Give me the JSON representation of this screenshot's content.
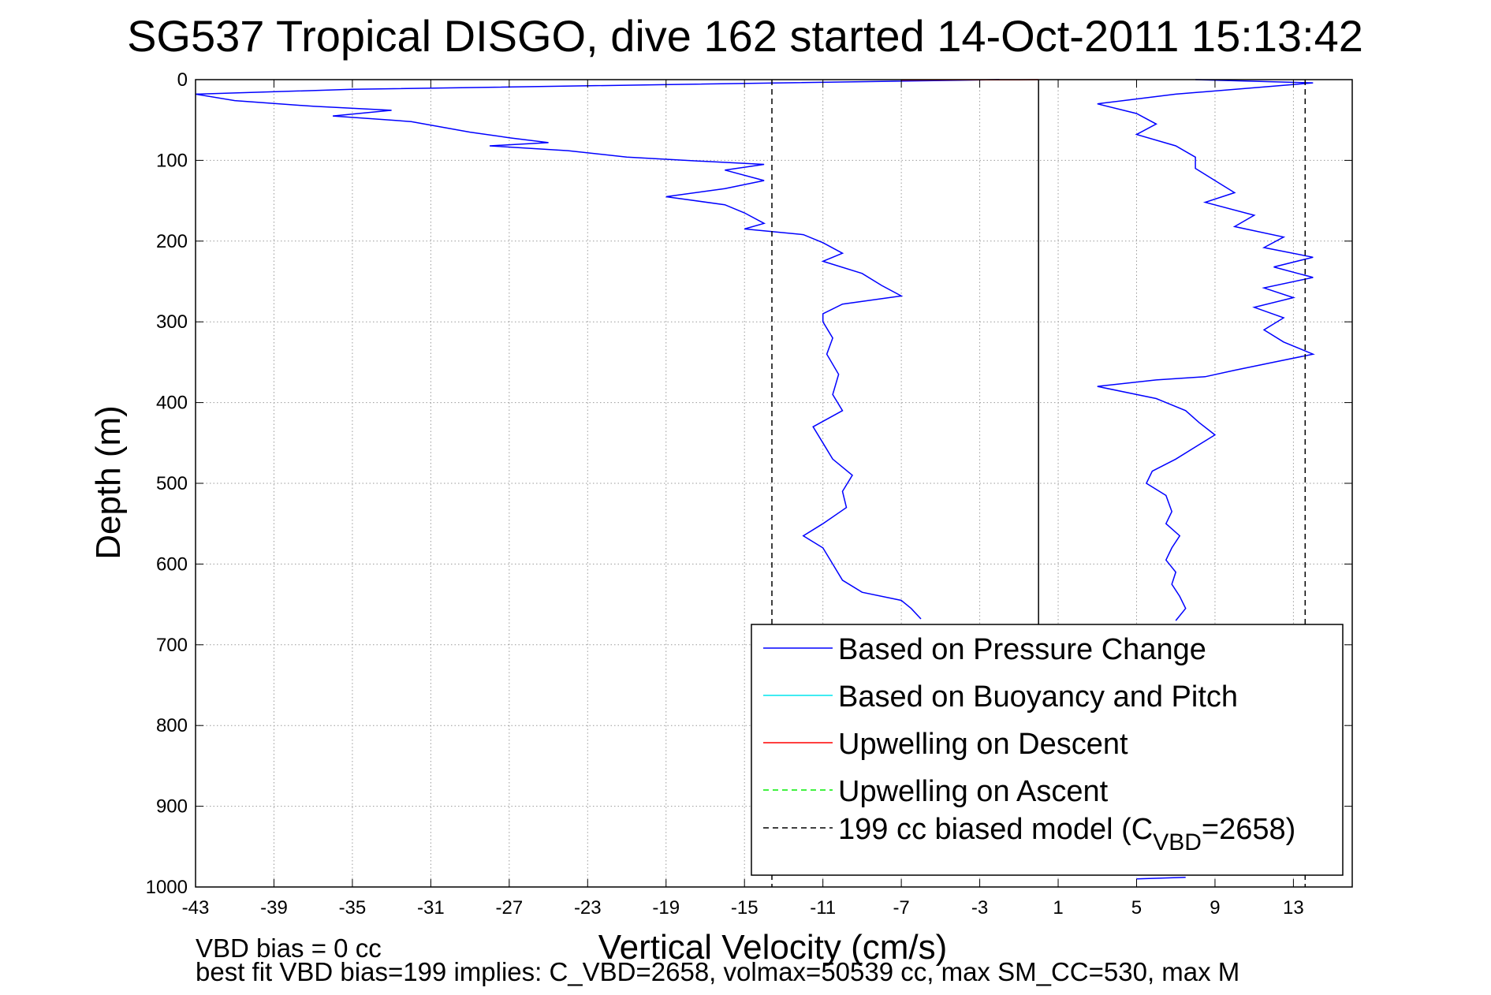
{
  "chart_data": {
    "type": "line",
    "title": "SG537 Tropical DISGO, dive 162 started 14-Oct-2011 15:13:42",
    "xlabel": "Vertical Velocity (cm/s)",
    "ylabel": "Depth (m)",
    "xlim": [
      -43,
      16
    ],
    "ylim": [
      0,
      1000
    ],
    "y_reversed": true,
    "grid": true,
    "xticks": [
      -43,
      -39,
      -35,
      -31,
      -27,
      -23,
      -19,
      -15,
      -11,
      -7,
      -3,
      1,
      5,
      9,
      13
    ],
    "yticks": [
      0,
      100,
      200,
      300,
      400,
      500,
      600,
      700,
      800,
      900,
      1000
    ],
    "legend_position": "bottom-right",
    "series": [
      {
        "name": "Based on Pressure Change",
        "color": "#0000ff",
        "style": "solid",
        "segment": "descent",
        "points": [
          [
            -2,
            0
          ],
          [
            -35,
            12
          ],
          [
            -43,
            18
          ],
          [
            -41,
            26
          ],
          [
            -37,
            33
          ],
          [
            -33,
            38
          ],
          [
            -36,
            45
          ],
          [
            -32,
            52
          ],
          [
            -29,
            65
          ],
          [
            -27,
            72
          ],
          [
            -25,
            78
          ],
          [
            -28,
            82
          ],
          [
            -24,
            88
          ],
          [
            -21,
            96
          ],
          [
            -18,
            100
          ],
          [
            -14,
            105
          ],
          [
            -16,
            112
          ],
          [
            -14,
            125
          ],
          [
            -16,
            135
          ],
          [
            -19,
            145
          ],
          [
            -16,
            155
          ],
          [
            -15,
            165
          ],
          [
            -14,
            178
          ],
          [
            -15,
            185
          ],
          [
            -12,
            192
          ],
          [
            -11,
            202
          ],
          [
            -10,
            215
          ],
          [
            -11,
            225
          ],
          [
            -9,
            240
          ],
          [
            -8,
            255
          ],
          [
            -7,
            268
          ],
          [
            -10,
            278
          ],
          [
            -11,
            290
          ],
          [
            -11,
            300
          ],
          [
            -10.5,
            320
          ],
          [
            -10.8,
            340
          ],
          [
            -10.2,
            365
          ],
          [
            -10.5,
            390
          ],
          [
            -10,
            410
          ],
          [
            -11.5,
            430
          ],
          [
            -11,
            450
          ],
          [
            -10.5,
            470
          ],
          [
            -9.5,
            490
          ],
          [
            -10,
            510
          ],
          [
            -9.8,
            530
          ],
          [
            -11,
            550
          ],
          [
            -12,
            565
          ],
          [
            -11,
            580
          ],
          [
            -10.5,
            600
          ],
          [
            -10,
            620
          ],
          [
            -9,
            635
          ],
          [
            -7,
            645
          ],
          [
            -6.5,
            655
          ],
          [
            -6,
            668
          ]
        ]
      },
      {
        "name": "Based on Pressure Change",
        "color": "#0000ff",
        "style": "solid",
        "segment": "ascent",
        "points": [
          [
            7.5,
            988
          ],
          [
            5,
            990
          ]
        ]
      },
      {
        "name": "Based on Pressure Change",
        "color": "#0000ff",
        "style": "solid",
        "segment": "ascent",
        "points": [
          [
            7,
            670
          ],
          [
            7.5,
            655
          ],
          [
            7.2,
            640
          ],
          [
            6.8,
            625
          ],
          [
            7,
            610
          ],
          [
            6.5,
            595
          ],
          [
            6.8,
            580
          ],
          [
            7.2,
            565
          ],
          [
            6.5,
            550
          ],
          [
            6.8,
            535
          ],
          [
            6.5,
            515
          ],
          [
            5.5,
            500
          ],
          [
            5.8,
            485
          ],
          [
            7,
            470
          ],
          [
            8,
            455
          ],
          [
            9,
            440
          ],
          [
            8.2,
            425
          ],
          [
            7.5,
            410
          ],
          [
            6,
            395
          ],
          [
            3,
            380
          ],
          [
            6,
            372
          ],
          [
            8.5,
            368
          ],
          [
            10,
            360
          ],
          [
            12,
            350
          ],
          [
            14,
            340
          ],
          [
            12.5,
            325
          ],
          [
            11.5,
            310
          ],
          [
            12.5,
            295
          ],
          [
            11,
            282
          ],
          [
            13,
            270
          ],
          [
            11.5,
            258
          ],
          [
            14,
            245
          ],
          [
            12,
            232
          ],
          [
            14,
            220
          ],
          [
            11.5,
            208
          ],
          [
            12.5,
            195
          ],
          [
            10,
            182
          ],
          [
            11,
            168
          ],
          [
            8.5,
            152
          ],
          [
            10,
            140
          ],
          [
            9,
            125
          ],
          [
            8,
            110
          ],
          [
            8,
            96
          ],
          [
            7,
            82
          ],
          [
            5,
            68
          ],
          [
            6,
            55
          ],
          [
            5,
            42
          ],
          [
            3,
            30
          ],
          [
            7,
            18
          ],
          [
            12,
            8
          ],
          [
            14,
            4
          ],
          [
            8,
            0
          ]
        ]
      },
      {
        "name": "Based on Buoyancy and Pitch",
        "color": "#00e5ee",
        "style": "solid",
        "points": []
      },
      {
        "name": "Upwelling on Descent",
        "color": "#ff0000",
        "style": "solid",
        "points": [
          [
            -7,
            0.5
          ],
          [
            -4,
            0.3
          ],
          [
            -1,
            0.2
          ],
          [
            0,
            0
          ]
        ]
      },
      {
        "name": "Upwelling on Ascent",
        "color": "#00ee00",
        "style": "dashed",
        "points": []
      },
      {
        "name": "199 cc biased model (C_VBD=2658)",
        "color": "#000000",
        "style": "dashed",
        "points": [
          [
            -13.6,
            0
          ],
          [
            -13.6,
            1000
          ]
        ]
      },
      {
        "name": "199 cc biased model (C_VBD=2658)",
        "color": "#000000",
        "style": "dashed",
        "points": [
          [
            13.6,
            0
          ],
          [
            13.6,
            1000
          ]
        ]
      }
    ],
    "reference_lines": [
      {
        "axis": "x",
        "value": 0,
        "color": "#000000",
        "style": "solid",
        "ymax": 680
      }
    ],
    "legend_entries": [
      {
        "label": "Based on Pressure Change",
        "color": "#0000ff",
        "style": "solid"
      },
      {
        "label": "Based on Buoyancy and Pitch",
        "color": "#00e5ee",
        "style": "solid"
      },
      {
        "label": "Upwelling on Descent",
        "color": "#ff0000",
        "style": "solid"
      },
      {
        "label": "Upwelling on Ascent",
        "color": "#00ee00",
        "style": "dashed"
      },
      {
        "label": "199 cc biased model (C",
        "subscript": "VBD",
        "suffix": "=2658)",
        "color": "#000000",
        "style": "dashed"
      }
    ],
    "annotations": [
      "VBD bias = 0 cc",
      "best fit VBD bias=199 implies: C_VBD=2658, volmax=50539 cc, max SM_CC=530, max M"
    ]
  }
}
